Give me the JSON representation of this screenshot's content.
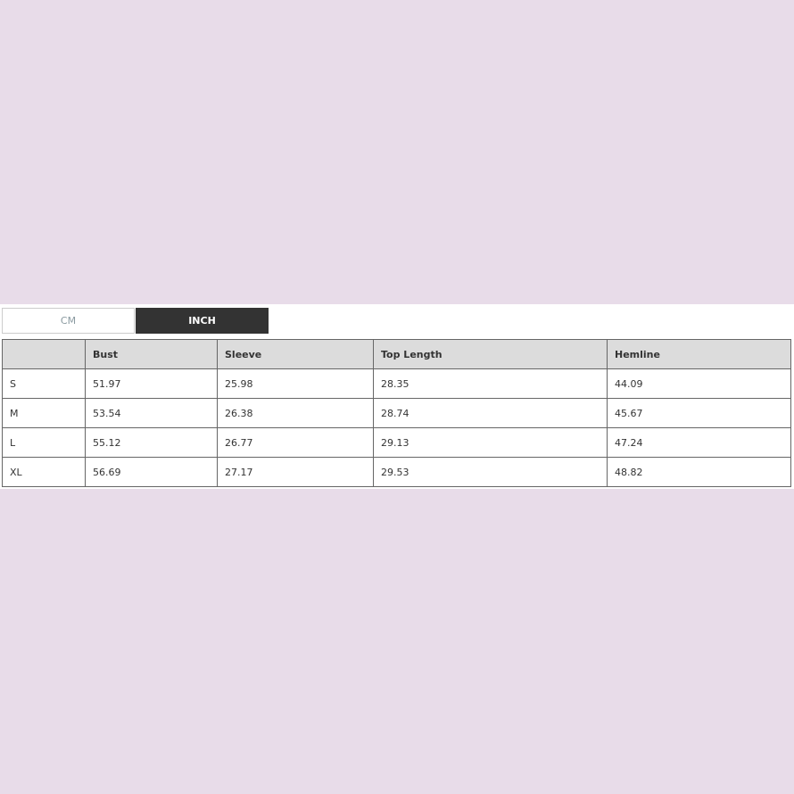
{
  "units": {
    "options": [
      "CM",
      "INCH"
    ],
    "selected": "INCH"
  },
  "table": {
    "headers": [
      "",
      "Bust",
      "Sleeve",
      "Top Length",
      "Hemline"
    ],
    "rows": [
      [
        "S",
        "51.97",
        "25.98",
        "28.35",
        "44.09"
      ],
      [
        "M",
        "53.54",
        "26.38",
        "28.74",
        "45.67"
      ],
      [
        "L",
        "55.12",
        "26.77",
        "29.13",
        "47.24"
      ],
      [
        "XL",
        "56.69",
        "27.17",
        "29.53",
        "48.82"
      ]
    ]
  }
}
